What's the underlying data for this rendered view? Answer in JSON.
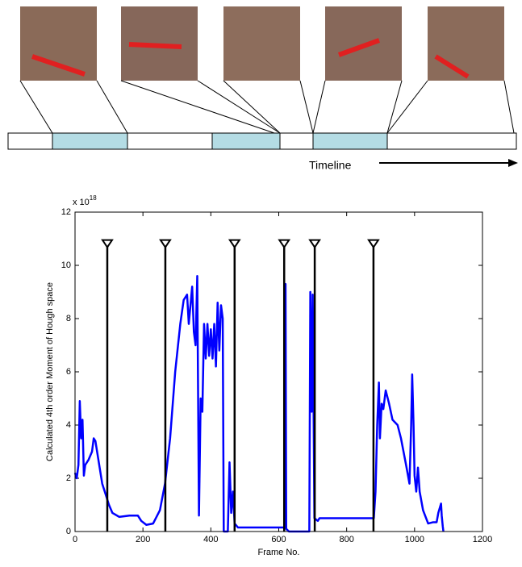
{
  "figure": {
    "timeline_label": "Timeline"
  },
  "chart_data": {
    "type": "line",
    "xlabel": "Frame No.",
    "ylabel": "Calculated 4th order Moment of Hough space",
    "y_multiplier": {
      "base": "x 10",
      "exponent": "18"
    },
    "xlim": [
      0,
      1200
    ],
    "xticks": [
      0,
      200,
      400,
      600,
      800,
      1000,
      1200
    ],
    "ylim": [
      0,
      12
    ],
    "yticks": [
      0,
      2,
      4,
      6,
      8,
      10,
      12
    ],
    "color": "#0000ff",
    "x": [
      0,
      5,
      10,
      14,
      18,
      22,
      26,
      30,
      40,
      50,
      55,
      60,
      70,
      80,
      90,
      100,
      110,
      130,
      160,
      185,
      195,
      210,
      230,
      250,
      265,
      280,
      295,
      310,
      320,
      330,
      335,
      340,
      345,
      350,
      355,
      360,
      365,
      370,
      375,
      380,
      385,
      390,
      395,
      400,
      405,
      410,
      415,
      420,
      425,
      430,
      435,
      438,
      450,
      455,
      460,
      465,
      470,
      480,
      600,
      615,
      618,
      620,
      622,
      630,
      690,
      693,
      697,
      700,
      705,
      715,
      720,
      800,
      880,
      885,
      890,
      895,
      898,
      903,
      908,
      915,
      925,
      935,
      950,
      960,
      975,
      985,
      990,
      993,
      997,
      1000,
      1005,
      1010,
      1015,
      1025,
      1040,
      1055,
      1065,
      1070,
      1078,
      1080,
      1083,
      1085
    ],
    "values": [
      2.2,
      2.0,
      2.5,
      4.9,
      3.5,
      4.2,
      2.1,
      2.5,
      2.7,
      3.0,
      3.5,
      3.4,
      2.6,
      1.8,
      1.4,
      1.0,
      0.7,
      0.55,
      0.6,
      0.6,
      0.4,
      0.25,
      0.3,
      0.8,
      1.8,
      3.5,
      6.0,
      7.8,
      8.7,
      8.9,
      7.8,
      8.5,
      9.2,
      7.5,
      7.0,
      9.6,
      0.6,
      5.0,
      4.5,
      7.8,
      6.5,
      7.8,
      6.6,
      7.6,
      6.5,
      7.8,
      6.2,
      8.6,
      6.8,
      8.5,
      8.0,
      0,
      0,
      2.6,
      0.7,
      1.5,
      0.3,
      0.15,
      0.15,
      0.15,
      0.2,
      9.3,
      0.1,
      0,
      0,
      9.0,
      4.5,
      8.9,
      0.5,
      0.4,
      0.5,
      0.5,
      0.5,
      1.5,
      4.0,
      5.6,
      3.5,
      4.8,
      4.6,
      5.3,
      4.8,
      4.2,
      4.0,
      3.5,
      2.5,
      1.8,
      4.0,
      5.9,
      4.0,
      2.1,
      1.5,
      2.4,
      1.5,
      0.8,
      0.3,
      0.35,
      0.35,
      0.7,
      1.05,
      0.6,
      0.2,
      0
    ],
    "markers": {
      "x": [
        95,
        266,
        470,
        616,
        706,
        879
      ],
      "top": 10.8,
      "color": "#000000"
    }
  }
}
